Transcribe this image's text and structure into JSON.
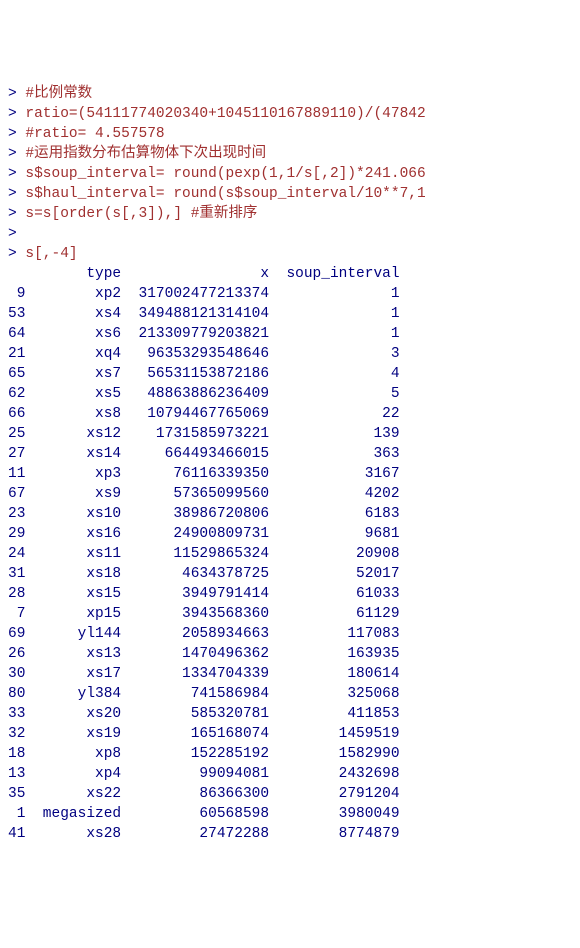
{
  "lines": [
    {
      "prompt": "> ",
      "text": "#比例常数",
      "cls": "red"
    },
    {
      "prompt": "> ",
      "text": "ratio=(54111774020340+1045110167889110)/(47842",
      "cls": "red"
    },
    {
      "prompt": "> ",
      "text": "#ratio= 4.557578",
      "cls": "red"
    },
    {
      "prompt": "> ",
      "text": "#运用指数分布估算物体下次出现时间",
      "cls": "red"
    },
    {
      "prompt": "> ",
      "text": "s$soup_interval= round(pexp(1,1/s[,2])*241.066",
      "cls": "red"
    },
    {
      "prompt": "> ",
      "text": "s$haul_interval= round(s$soup_interval/10**7,1",
      "cls": "red"
    },
    {
      "prompt": "> ",
      "text": "s=s[order(s[,3]),] #重新排序",
      "cls": "red"
    },
    {
      "prompt": "> ",
      "text": "",
      "cls": "red"
    },
    {
      "prompt": "> ",
      "text": "s[,-4]",
      "cls": "red"
    }
  ],
  "header": {
    "c1": "",
    "c2": "type",
    "c3": "x",
    "c4": "soup_interval"
  },
  "rows": [
    {
      "c1": "9",
      "c2": "xp2",
      "c3": "317002477213374",
      "c4": "1"
    },
    {
      "c1": "53",
      "c2": "xs4",
      "c3": "349488121314104",
      "c4": "1"
    },
    {
      "c1": "64",
      "c2": "xs6",
      "c3": "213309779203821",
      "c4": "1"
    },
    {
      "c1": "21",
      "c2": "xq4",
      "c3": "96353293548646",
      "c4": "3"
    },
    {
      "c1": "65",
      "c2": "xs7",
      "c3": "56531153872186",
      "c4": "4"
    },
    {
      "c1": "62",
      "c2": "xs5",
      "c3": "48863886236409",
      "c4": "5"
    },
    {
      "c1": "66",
      "c2": "xs8",
      "c3": "10794467765069",
      "c4": "22"
    },
    {
      "c1": "25",
      "c2": "xs12",
      "c3": "1731585973221",
      "c4": "139"
    },
    {
      "c1": "27",
      "c2": "xs14",
      "c3": "664493466015",
      "c4": "363"
    },
    {
      "c1": "11",
      "c2": "xp3",
      "c3": "76116339350",
      "c4": "3167"
    },
    {
      "c1": "67",
      "c2": "xs9",
      "c3": "57365099560",
      "c4": "4202"
    },
    {
      "c1": "23",
      "c2": "xs10",
      "c3": "38986720806",
      "c4": "6183"
    },
    {
      "c1": "29",
      "c2": "xs16",
      "c3": "24900809731",
      "c4": "9681"
    },
    {
      "c1": "24",
      "c2": "xs11",
      "c3": "11529865324",
      "c4": "20908"
    },
    {
      "c1": "31",
      "c2": "xs18",
      "c3": "4634378725",
      "c4": "52017"
    },
    {
      "c1": "28",
      "c2": "xs15",
      "c3": "3949791414",
      "c4": "61033"
    },
    {
      "c1": "7",
      "c2": "xp15",
      "c3": "3943568360",
      "c4": "61129"
    },
    {
      "c1": "69",
      "c2": "yl144",
      "c3": "2058934663",
      "c4": "117083"
    },
    {
      "c1": "26",
      "c2": "xs13",
      "c3": "1470496362",
      "c4": "163935"
    },
    {
      "c1": "30",
      "c2": "xs17",
      "c3": "1334704339",
      "c4": "180614"
    },
    {
      "c1": "80",
      "c2": "yl384",
      "c3": "741586984",
      "c4": "325068"
    },
    {
      "c1": "33",
      "c2": "xs20",
      "c3": "585320781",
      "c4": "411853"
    },
    {
      "c1": "32",
      "c2": "xs19",
      "c3": "165168074",
      "c4": "1459519"
    },
    {
      "c1": "18",
      "c2": "xp8",
      "c3": "152285192",
      "c4": "1582990"
    },
    {
      "c1": "13",
      "c2": "xp4",
      "c3": "99094081",
      "c4": "2432698"
    },
    {
      "c1": "35",
      "c2": "xs22",
      "c3": "86366300",
      "c4": "2791204"
    },
    {
      "c1": "1",
      "c2": "megasized",
      "c3": "60568598",
      "c4": "3980049"
    },
    {
      "c1": "41",
      "c2": "xs28",
      "c3": "27472288",
      "c4": "8774879"
    }
  ],
  "widths": {
    "w1": 2,
    "w2": 10,
    "w3": 16,
    "w4": 14
  },
  "colors": {
    "input": "#a03030",
    "output": "#000080",
    "background": "#ffffff"
  }
}
